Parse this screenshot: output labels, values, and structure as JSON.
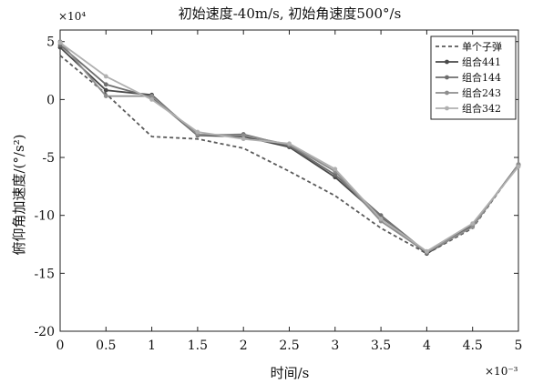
{
  "chart_data": {
    "type": "line",
    "title": "初始速度-40m/s, 初始角速度500°/s",
    "xlabel": "时间/s",
    "ylabel": "俯仰角加速度/(°/s²)",
    "x_exponent": "×10⁻³",
    "y_exponent": "×10⁴",
    "xlim": [
      0,
      5
    ],
    "ylim": [
      -20,
      6
    ],
    "x_ticks": [
      0,
      0.5,
      1,
      1.5,
      2,
      2.5,
      3,
      3.5,
      4,
      4.5,
      5
    ],
    "y_ticks": [
      5,
      0,
      -5,
      -10,
      -15,
      -20
    ],
    "x_tick_labels": [
      "0",
      "0.5",
      "1",
      "1.5",
      "2",
      "2.5",
      "3",
      "3.5",
      "4",
      "4.5",
      "5"
    ],
    "y_tick_labels": [
      "5",
      "0",
      "-5",
      "-10",
      "-15",
      "-20"
    ],
    "grid": false,
    "legend_position": "top-right",
    "series": [
      {
        "name": "单个子弹",
        "color": "#5a5a5a",
        "style": "dashed",
        "x": [
          0,
          0.5,
          1,
          1.5,
          2,
          2.5,
          3,
          3.5,
          4,
          4.5,
          5
        ],
        "y": [
          3.8,
          0.5,
          -3.2,
          -3.4,
          -4.2,
          -6.2,
          -8.3,
          -11.1,
          -13.3,
          -11.1,
          -5.6
        ]
      },
      {
        "name": "组合441",
        "color": "#4a4a4a",
        "style": "solid",
        "x": [
          0,
          0.5,
          1,
          1.5,
          2,
          2.5,
          3,
          3.5,
          4,
          4.5,
          5
        ],
        "y": [
          4.5,
          0.8,
          0.4,
          -3.1,
          -3.2,
          -4.1,
          -6.7,
          -10.2,
          -13.3,
          -10.9,
          -5.6
        ]
      },
      {
        "name": "组合144",
        "color": "#6e6e6e",
        "style": "solid",
        "x": [
          0,
          0.5,
          1,
          1.5,
          2,
          2.5,
          3,
          3.5,
          4,
          4.5,
          5
        ],
        "y": [
          4.7,
          1.3,
          0.2,
          -3.1,
          -3.0,
          -4.0,
          -6.5,
          -10.0,
          -13.2,
          -10.8,
          -5.7
        ]
      },
      {
        "name": "组合243",
        "color": "#8e8e8e",
        "style": "solid",
        "x": [
          0,
          0.5,
          1,
          1.5,
          2,
          2.5,
          3,
          3.5,
          4,
          4.5,
          5
        ],
        "y": [
          5.0,
          0.3,
          0.3,
          -3.0,
          -3.1,
          -3.9,
          -6.2,
          -10.5,
          -13.2,
          -11.0,
          -5.6
        ]
      },
      {
        "name": "组合342",
        "color": "#b0b0b0",
        "style": "solid",
        "x": [
          0,
          0.5,
          1,
          1.5,
          2,
          2.5,
          3,
          3.5,
          4,
          4.5,
          5
        ],
        "y": [
          4.9,
          2.0,
          0.0,
          -2.8,
          -3.4,
          -3.8,
          -6.0,
          -10.3,
          -13.1,
          -10.7,
          -5.8
        ]
      }
    ]
  }
}
